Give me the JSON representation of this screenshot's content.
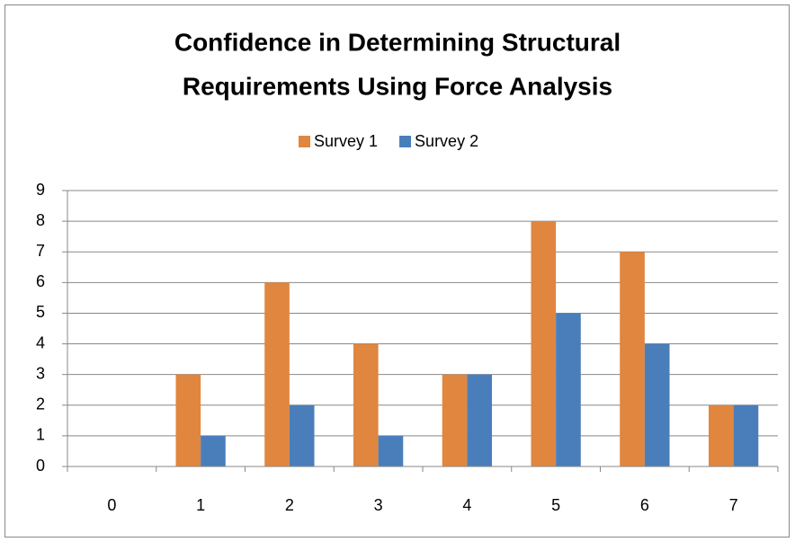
{
  "chart_data": {
    "type": "bar",
    "title": [
      "Confidence in Determining Structural",
      "Requirements Using Force Analysis"
    ],
    "categories": [
      "0",
      "1",
      "2",
      "3",
      "4",
      "5",
      "6",
      "7"
    ],
    "series": [
      {
        "name": "Survey 1",
        "color": "#E0863F",
        "values": [
          0,
          3,
          6,
          4,
          3,
          8,
          7,
          2
        ]
      },
      {
        "name": "Survey 2",
        "color": "#4A7EBB",
        "values": [
          0,
          1,
          2,
          1,
          3,
          5,
          4,
          2
        ]
      }
    ],
    "ylim": [
      0,
      9
    ],
    "yticks": [
      0,
      1,
      2,
      3,
      4,
      5,
      6,
      7,
      8,
      9
    ],
    "grid": true,
    "legend": "top"
  }
}
